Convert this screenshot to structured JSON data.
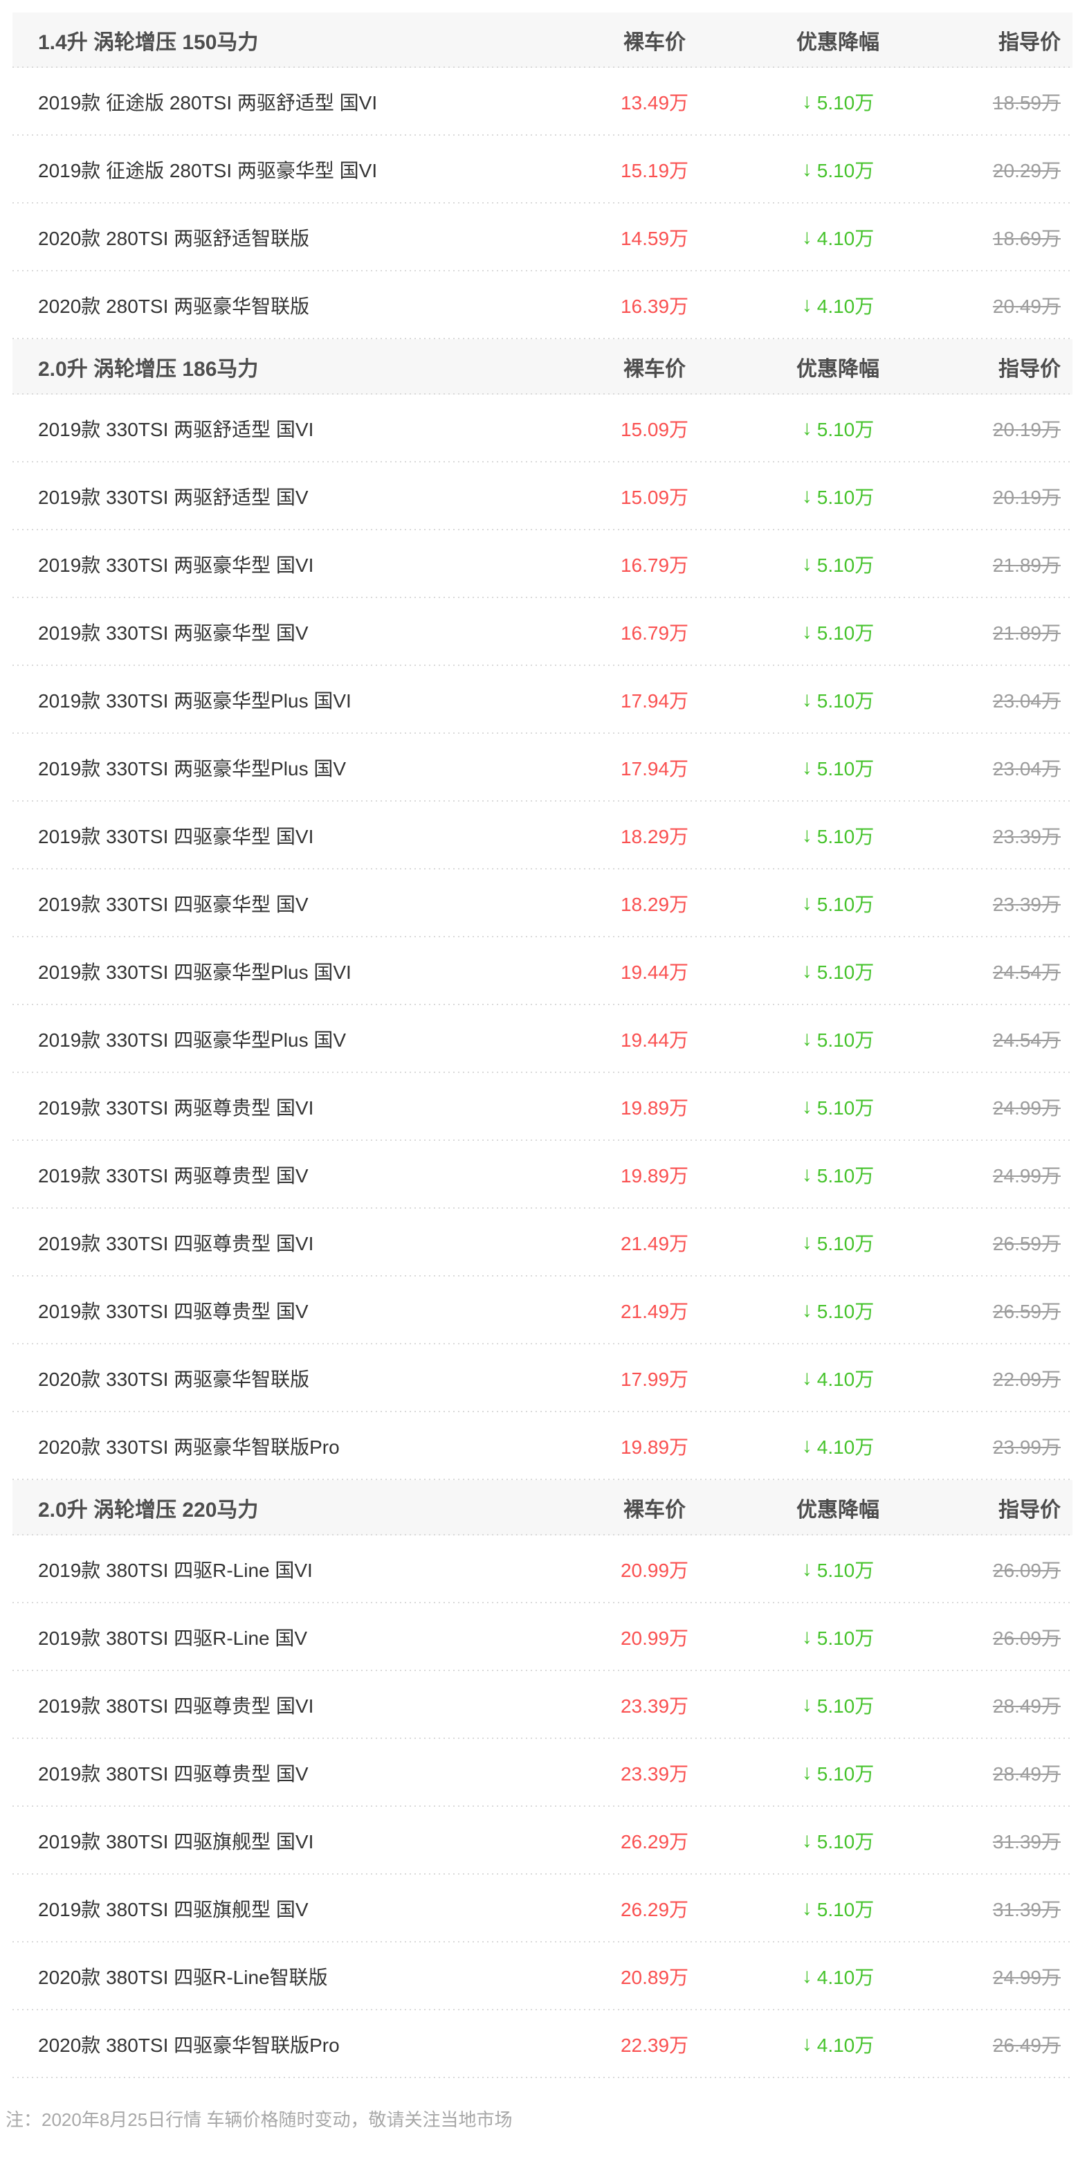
{
  "colors": {
    "bare_price_red": "#fa5050",
    "discount_green": "#46c32c",
    "guide_price_gray": "#9c9c9c",
    "section_header_bg": "#f7f7f7",
    "separator_dotted": "#d9d9d9"
  },
  "icons": {
    "down_arrow": "↓"
  },
  "columns": {
    "bare_price": "裸车价",
    "discount": "优惠降幅",
    "guide_price": "指导价"
  },
  "sections": [
    {
      "title": "1.4升 涡轮增压 150马力",
      "rows": [
        {
          "name": "2019款 征途版 280TSI 两驱舒适型 国VI",
          "bare": "13.49万",
          "discount": "5.10万",
          "guide": "18.59万"
        },
        {
          "name": "2019款 征途版 280TSI 两驱豪华型 国VI",
          "bare": "15.19万",
          "discount": "5.10万",
          "guide": "20.29万"
        },
        {
          "name": "2020款 280TSI 两驱舒适智联版",
          "bare": "14.59万",
          "discount": "4.10万",
          "guide": "18.69万"
        },
        {
          "name": "2020款 280TSI 两驱豪华智联版",
          "bare": "16.39万",
          "discount": "4.10万",
          "guide": "20.49万"
        }
      ]
    },
    {
      "title": "2.0升 涡轮增压 186马力",
      "rows": [
        {
          "name": "2019款 330TSI 两驱舒适型 国VI",
          "bare": "15.09万",
          "discount": "5.10万",
          "guide": "20.19万"
        },
        {
          "name": "2019款 330TSI 两驱舒适型 国V",
          "bare": "15.09万",
          "discount": "5.10万",
          "guide": "20.19万"
        },
        {
          "name": "2019款 330TSI 两驱豪华型 国VI",
          "bare": "16.79万",
          "discount": "5.10万",
          "guide": "21.89万"
        },
        {
          "name": "2019款 330TSI 两驱豪华型 国V",
          "bare": "16.79万",
          "discount": "5.10万",
          "guide": "21.89万"
        },
        {
          "name": "2019款 330TSI 两驱豪华型Plus 国VI",
          "bare": "17.94万",
          "discount": "5.10万",
          "guide": "23.04万"
        },
        {
          "name": "2019款 330TSI 两驱豪华型Plus 国V",
          "bare": "17.94万",
          "discount": "5.10万",
          "guide": "23.04万"
        },
        {
          "name": "2019款 330TSI 四驱豪华型 国VI",
          "bare": "18.29万",
          "discount": "5.10万",
          "guide": "23.39万"
        },
        {
          "name": "2019款 330TSI 四驱豪华型 国V",
          "bare": "18.29万",
          "discount": "5.10万",
          "guide": "23.39万"
        },
        {
          "name": "2019款 330TSI 四驱豪华型Plus 国VI",
          "bare": "19.44万",
          "discount": "5.10万",
          "guide": "24.54万"
        },
        {
          "name": "2019款 330TSI 四驱豪华型Plus 国V",
          "bare": "19.44万",
          "discount": "5.10万",
          "guide": "24.54万"
        },
        {
          "name": "2019款 330TSI 两驱尊贵型 国VI",
          "bare": "19.89万",
          "discount": "5.10万",
          "guide": "24.99万"
        },
        {
          "name": "2019款 330TSI 两驱尊贵型 国V",
          "bare": "19.89万",
          "discount": "5.10万",
          "guide": "24.99万"
        },
        {
          "name": "2019款 330TSI 四驱尊贵型 国VI",
          "bare": "21.49万",
          "discount": "5.10万",
          "guide": "26.59万"
        },
        {
          "name": "2019款 330TSI 四驱尊贵型 国V",
          "bare": "21.49万",
          "discount": "5.10万",
          "guide": "26.59万"
        },
        {
          "name": "2020款 330TSI 两驱豪华智联版",
          "bare": "17.99万",
          "discount": "4.10万",
          "guide": "22.09万"
        },
        {
          "name": "2020款 330TSI 两驱豪华智联版Pro",
          "bare": "19.89万",
          "discount": "4.10万",
          "guide": "23.99万"
        }
      ]
    },
    {
      "title": "2.0升 涡轮增压 220马力",
      "rows": [
        {
          "name": "2019款 380TSI 四驱R-Line 国VI",
          "bare": "20.99万",
          "discount": "5.10万",
          "guide": "26.09万"
        },
        {
          "name": "2019款 380TSI 四驱R-Line 国V",
          "bare": "20.99万",
          "discount": "5.10万",
          "guide": "26.09万"
        },
        {
          "name": "2019款 380TSI 四驱尊贵型 国VI",
          "bare": "23.39万",
          "discount": "5.10万",
          "guide": "28.49万"
        },
        {
          "name": "2019款 380TSI 四驱尊贵型 国V",
          "bare": "23.39万",
          "discount": "5.10万",
          "guide": "28.49万"
        },
        {
          "name": "2019款 380TSI 四驱旗舰型 国VI",
          "bare": "26.29万",
          "discount": "5.10万",
          "guide": "31.39万"
        },
        {
          "name": "2019款 380TSI 四驱旗舰型 国V",
          "bare": "26.29万",
          "discount": "5.10万",
          "guide": "31.39万"
        },
        {
          "name": "2020款 380TSI 四驱R-Line智联版",
          "bare": "20.89万",
          "discount": "4.10万",
          "guide": "24.99万"
        },
        {
          "name": "2020款 380TSI 四驱豪华智联版Pro",
          "bare": "22.39万",
          "discount": "4.10万",
          "guide": "26.49万"
        }
      ]
    }
  ],
  "footer": {
    "note": "注：2020年8月25日行情 车辆价格随时变动，敬请关注当地市场"
  }
}
